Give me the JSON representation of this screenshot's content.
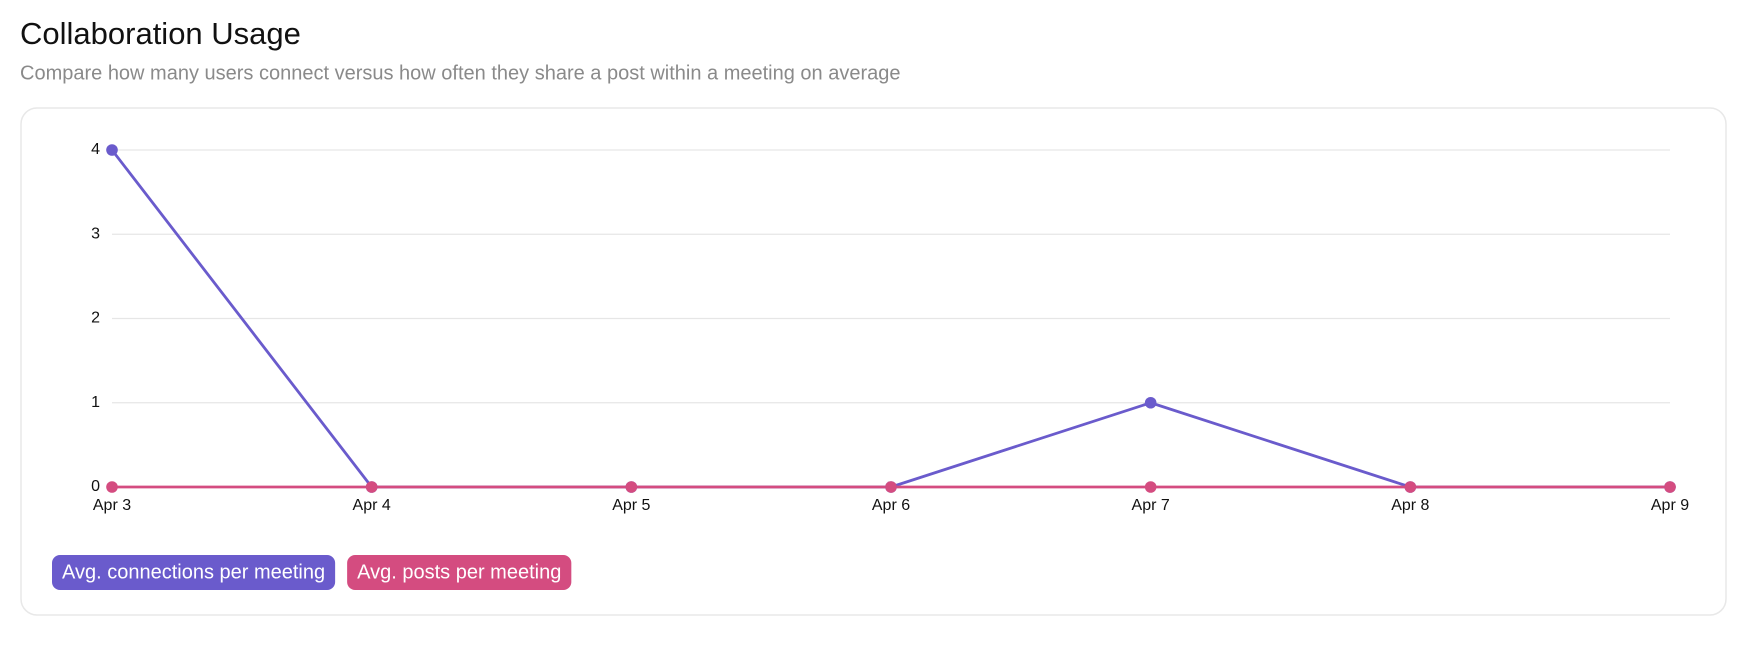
{
  "chart_data": {
    "type": "line",
    "title": "Collaboration Usage",
    "subtitle": "Compare how many users connect versus how often they share a post within a meeting on average",
    "categories": [
      "Apr 3",
      "Apr 4",
      "Apr 5",
      "Apr 6",
      "Apr 7",
      "Apr 8",
      "Apr 9"
    ],
    "series": [
      {
        "name": "Avg. connections per meeting",
        "color": "#6a5bcc",
        "values": [
          4,
          0,
          0,
          0,
          1,
          0,
          0
        ]
      },
      {
        "name": "Avg. posts per meeting",
        "color": "#d44c80",
        "values": [
          0,
          0,
          0,
          0,
          0,
          0,
          0
        ]
      }
    ],
    "ylim": [
      0,
      4
    ],
    "yticks": [
      0,
      1,
      2,
      3,
      4
    ],
    "grid": true
  }
}
